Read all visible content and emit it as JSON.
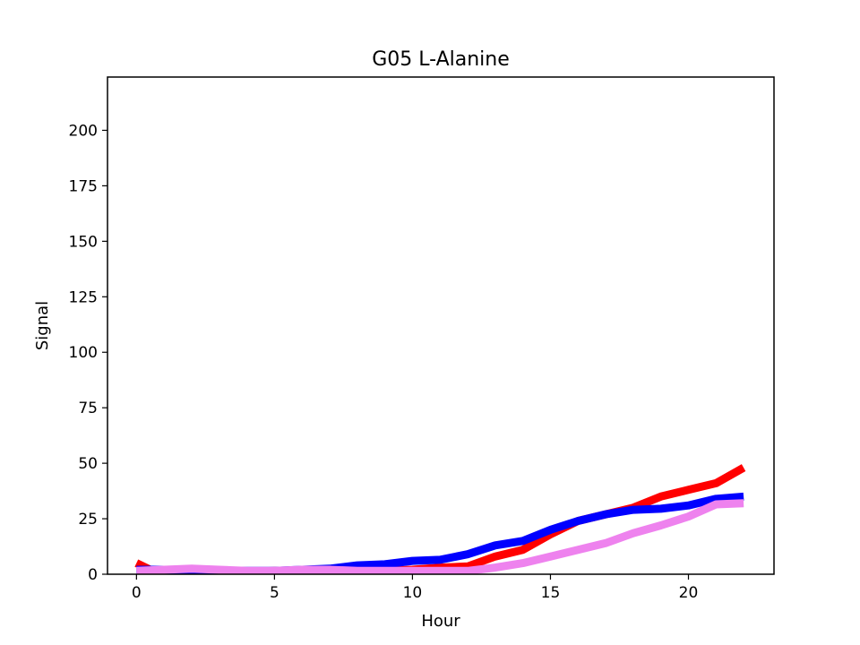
{
  "chart_data": {
    "type": "line",
    "title": "G05 L-Alanine",
    "xlabel": "Hour",
    "ylabel": "Signal",
    "xlim": [
      -1.05,
      23.1
    ],
    "ylim": [
      0,
      224
    ],
    "xticks": [
      0,
      5,
      10,
      15,
      20
    ],
    "yticks": [
      0,
      25,
      50,
      75,
      100,
      125,
      150,
      175,
      200
    ],
    "grid": false,
    "legend": "none",
    "series": [
      {
        "color": "#ff0000",
        "x": [
          0,
          0.5,
          1,
          2,
          3,
          4,
          5,
          6,
          7,
          8,
          9,
          10,
          11,
          12,
          13,
          14,
          15,
          16,
          17,
          18,
          19,
          20,
          21,
          22
        ],
        "y": [
          5,
          2,
          1.5,
          2,
          1.5,
          1,
          1.5,
          1.5,
          1.5,
          1.5,
          1.5,
          2,
          3,
          3.5,
          8,
          11,
          18,
          24,
          27,
          30,
          35,
          38,
          41,
          48
        ]
      },
      {
        "color": "#0000ff",
        "x": [
          0,
          1,
          2,
          3,
          4,
          5,
          6,
          7,
          8,
          9,
          10,
          11,
          12,
          13,
          14,
          15,
          16,
          17,
          18,
          19,
          20,
          21,
          22
        ],
        "y": [
          2,
          2,
          2,
          1.5,
          1.5,
          1.5,
          2,
          2.5,
          4,
          4.5,
          6,
          6.5,
          9,
          13,
          15,
          20,
          24,
          27,
          29,
          29.5,
          31,
          34,
          35
        ]
      },
      {
        "color": "#ee82ee",
        "x": [
          0,
          1,
          2,
          3,
          4,
          5,
          6,
          7,
          8,
          9,
          10,
          11,
          12,
          13,
          14,
          15,
          16,
          17,
          18,
          19,
          20,
          21,
          22
        ],
        "y": [
          1.5,
          2,
          2.5,
          2,
          1.5,
          1.5,
          2,
          2,
          1.5,
          1.5,
          1.5,
          1.5,
          1.5,
          3,
          5,
          8,
          11,
          14,
          18.5,
          22,
          26,
          31.5,
          32
        ]
      }
    ]
  }
}
